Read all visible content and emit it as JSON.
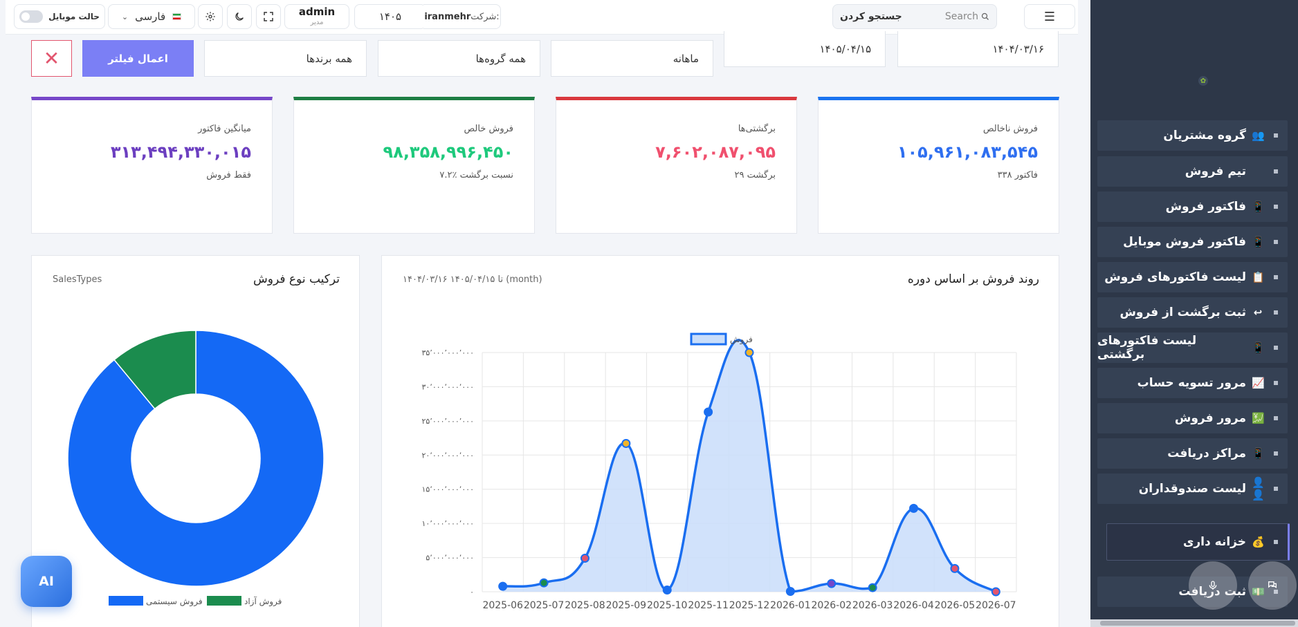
{
  "topbar": {
    "mobile_mode_label": "حالت موبایل",
    "language": "فارسی",
    "user_name": "admin",
    "user_role": "مدیر",
    "year": "۱۴۰۵",
    "company_label": "شرکت:",
    "company_name": "iranmehr",
    "search_label": "جستجو کردن",
    "search_placeholder": "Search"
  },
  "filters": {
    "date_from": "۱۴۰۴/۰۳/۱۶",
    "date_to": "۱۴۰۵/۰۴/۱۵",
    "period": "ماهانه",
    "groups": "همه گروه‌ها",
    "brands": "همه برندها",
    "apply_label": "اعمال فیلتر",
    "clear_label": "✕"
  },
  "kpis": [
    {
      "label": "فروش ناخالص",
      "value": "۱۰۵,۹۶۱,۰۸۳,۵۴۵",
      "sub": "۳۳۸ فاکتور",
      "color": "#2f6ff0",
      "bar": "#1a73f0"
    },
    {
      "label": "برگشتی‌ها",
      "value": "۷,۶۰۲,۰۸۷,۰۹۵",
      "sub": "۲۹ برگشت",
      "color": "#f0506e",
      "bar": "#d9383e"
    },
    {
      "label": "فروش خالص",
      "value": "۹۸,۳۵۸,۹۹۶,۴۵۰",
      "sub": "نسبت برگشت ٪۷.۲",
      "color": "#1ec97c",
      "bar": "#1e7e44"
    },
    {
      "label": "میانگین فاکتور",
      "value": "۳۱۳,۴۹۴,۳۳۰,۰۱۵",
      "sub": "فقط فروش",
      "color": "#6c3fc0",
      "bar": "#7647c9"
    }
  ],
  "trend_panel": {
    "title": "روند فروش بر اساس دوره",
    "subtitle": "۱۴۰۴/۰۳/۱۶ تا ۱۴۰۵/۰۴/۱۵ (month)"
  },
  "mix_panel": {
    "title": "ترکیب نوع فروش",
    "subtitle": "SalesTypes"
  },
  "colors": {
    "line": "#1a6ef0",
    "fill": "#c9ddfa",
    "system_sales": "#1469f5",
    "free_sales": "#1b8c4e",
    "primary_button": "#7b7ff5",
    "sidebar_bg": "#2d3748"
  },
  "chart_data": [
    {
      "type": "area",
      "title": "",
      "categories": [
        "2025-06",
        "2025-07",
        "2025-08",
        "2025-09",
        "2025-10",
        "2025-11",
        "2025-12",
        "2026-01",
        "2026-02",
        "2026-03",
        "2026-04",
        "2026-05",
        "2026-07"
      ],
      "series": [
        {
          "name": "فروش",
          "values": [
            800000000,
            1300000000,
            4900000000,
            21700000000,
            250000000,
            26300000000,
            35000000000,
            50000000,
            1200000000,
            600000000,
            12200000000,
            3400000000,
            0
          ]
        }
      ],
      "point_colors": [
        "#1a6ef0",
        "#1b8c4e",
        "#e2556e",
        "#f0b429",
        "#1a6ef0",
        "#1a6ef0",
        "#f0b429",
        "#1a6ef0",
        "#7647c9",
        "#1b8c4e",
        "#1a6ef0",
        "#e2556e",
        "#e2556e"
      ],
      "ylim": [
        0,
        35000000000
      ],
      "yticks": [
        "۰",
        "۵٬۰۰۰٬۰۰۰٬۰۰۰",
        "۱۰٬۰۰۰٬۰۰۰٬۰۰۰",
        "۱۵٬۰۰۰٬۰۰۰٬۰۰۰",
        "۲۰٬۰۰۰٬۰۰۰٬۰۰۰",
        "۲۵٬۰۰۰٬۰۰۰٬۰۰۰",
        "۳۰٬۰۰۰٬۰۰۰٬۰۰۰",
        "۳۵٬۰۰۰٬۰۰۰٬۰۰۰"
      ],
      "grid": true,
      "legend": "top-center"
    },
    {
      "type": "pie",
      "title": "",
      "categories": [
        "فروش سیستمی",
        "فروش آزاد"
      ],
      "values": [
        89,
        11
      ],
      "colors": [
        "#1469f5",
        "#1b8c4e"
      ],
      "legend": "bottom-center"
    }
  ],
  "sidebar": {
    "items": [
      {
        "label": "گروه مشتریان",
        "emoji": "👥"
      },
      {
        "label": "تیم فروش",
        "emoji": ""
      },
      {
        "label": "فاکتور فروش",
        "emoji": "📱"
      },
      {
        "label": "فاکتور فروش موبایل",
        "emoji": "📱"
      },
      {
        "label": "لیست فاکتورهای فروش",
        "emoji": "📋"
      },
      {
        "label": "ثبت برگشت از فروش",
        "emoji": "↩"
      },
      {
        "label": "لیست فاکتورهای برگشتی",
        "emoji": "📱"
      },
      {
        "label": "مرور تسویه حساب",
        "emoji": "📈"
      },
      {
        "label": "مرور فروش",
        "emoji": "💹"
      },
      {
        "label": "مراکز دریافت",
        "emoji": "📱"
      },
      {
        "label": "لیست صندوقداران",
        "emoji": "👤👤"
      }
    ],
    "active_item": {
      "label": "خزانه داری",
      "emoji": "💰"
    },
    "last_item": {
      "label": "ثبت دریافت",
      "emoji": "💵"
    }
  },
  "ai_button_label": "AI"
}
